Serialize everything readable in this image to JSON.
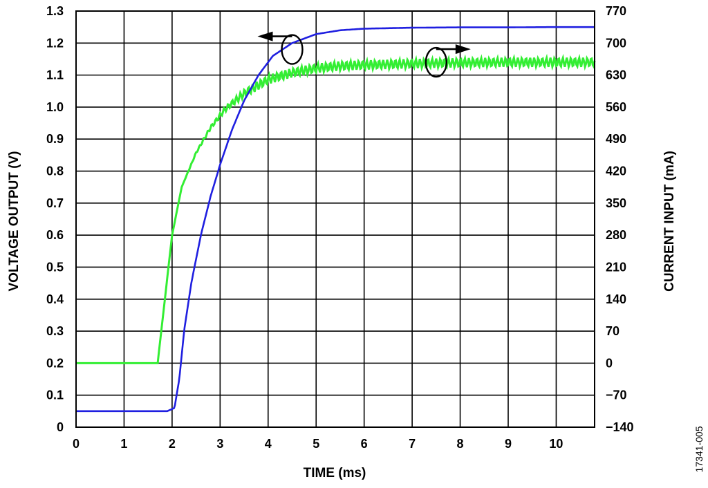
{
  "figure_id": "17341-005",
  "chart_data": {
    "type": "line",
    "title": "",
    "xlabel": "TIME (ms)",
    "ylabel_left": "VOLTAGE OUTPUT (V)",
    "ylabel_right": "CURRENT INPUT (mA)",
    "xlim": [
      0,
      10.8
    ],
    "ylim_left": [
      0,
      1.3
    ],
    "ylim_right": [
      -140,
      770
    ],
    "grid": true,
    "x_ticks": [
      "0",
      "1",
      "2",
      "3",
      "4",
      "5",
      "6",
      "7",
      "8",
      "9",
      "10"
    ],
    "y_left_ticks": [
      "0",
      "0.1",
      "0.2",
      "0.3",
      "0.4",
      "0.5",
      "0.6",
      "0.7",
      "0.8",
      "0.9",
      "1.0",
      "1.1",
      "1.2",
      "1.3"
    ],
    "y_right_ticks": [
      "−140",
      "−70",
      "0",
      "70",
      "140",
      "210",
      "280",
      "350",
      "420",
      "490",
      "560",
      "630",
      "700",
      "770"
    ],
    "series": [
      {
        "axis": "left",
        "color": "#1f1fe0",
        "x": [
          0,
          1.9,
          2.05,
          2.15,
          2.25,
          2.4,
          2.6,
          2.8,
          3.0,
          3.25,
          3.5,
          3.8,
          4.1,
          4.5,
          5.0,
          5.5,
          6.0,
          7.0,
          8.0,
          9.0,
          10.0,
          10.8
        ],
        "y": [
          0.05,
          0.05,
          0.06,
          0.15,
          0.3,
          0.45,
          0.6,
          0.72,
          0.82,
          0.93,
          1.02,
          1.1,
          1.16,
          1.2,
          1.228,
          1.24,
          1.245,
          1.248,
          1.249,
          1.249,
          1.25,
          1.25
        ]
      },
      {
        "axis": "right",
        "color": "#33ee33",
        "x": [
          0,
          1.7,
          1.85,
          2.0,
          2.2,
          2.5,
          2.8,
          3.1,
          3.5,
          4.0,
          4.5,
          5.0,
          5.5,
          6.0,
          7.0,
          8.0,
          9.0,
          10.0,
          10.8
        ],
        "y": [
          0,
          0,
          140,
          280,
          385,
          460,
          515,
          555,
          590,
          620,
          635,
          645,
          650,
          652,
          655,
          657,
          658,
          658,
          658
        ],
        "ripple_amplitude": 10
      }
    ],
    "annotations": [
      {
        "type": "ellipse-arrow",
        "series": 0,
        "arrow_direction": "left",
        "x": 4.5,
        "y_left": 1.18
      },
      {
        "type": "ellipse-arrow",
        "series": 1,
        "arrow_direction": "right",
        "x": 7.5,
        "y_right": 658
      }
    ]
  }
}
